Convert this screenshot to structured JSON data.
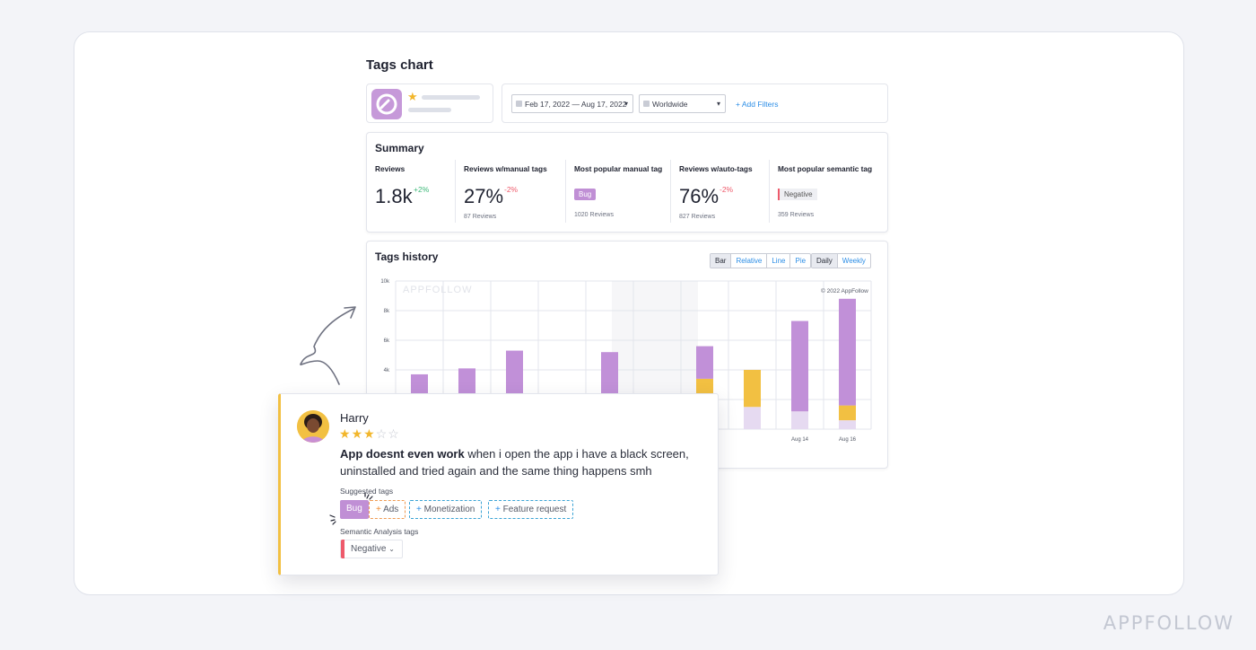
{
  "page": {
    "title": "Tags chart",
    "brand": "APPFOLLOW"
  },
  "filters": {
    "date_range": "Feb 17, 2022 — Aug 17, 2022",
    "region": "Worldwide",
    "add_filters": "+ Add Filters"
  },
  "summary": {
    "title": "Summary",
    "metrics": [
      {
        "label": "Reviews",
        "value": "1.8k",
        "delta": "+2%",
        "sub": ""
      },
      {
        "label": "Reviews w/manual tags",
        "value": "27%",
        "delta": "-2%",
        "sub": "87 Reviews"
      },
      {
        "label": "Most popular manual tag",
        "tag": "Bug",
        "sub": "1020 Reviews"
      },
      {
        "label": "Reviews w/auto-tags",
        "value": "76%",
        "delta": "-2%",
        "sub": "827 Reviews"
      },
      {
        "label": "Most popular semantic tag",
        "tag": "Negative",
        "sub": "359 Reviews"
      }
    ]
  },
  "history": {
    "title": "Tags history",
    "chart_types": [
      "Bar",
      "Relative",
      "Line",
      "Pie"
    ],
    "active_chart_type": "Bar",
    "periods": [
      "Daily",
      "Weekly"
    ],
    "active_period": "Daily",
    "watermark": "APPFOLLOW",
    "copyright": "© 2022 AppFollow"
  },
  "chart_data": {
    "type": "bar",
    "stacked": true,
    "ylim": [
      0,
      10000
    ],
    "y_ticks": [
      "10k",
      "8k",
      "6k",
      "4k"
    ],
    "x_tick_labels": [
      "Aug 14",
      "Aug 16"
    ],
    "colors": {
      "purple": "#c190d8",
      "yellow": "#f2c042",
      "lavender": "#e6daf1"
    },
    "series": [
      {
        "color": "purple",
        "values": [
          3700,
          3600,
          5300,
          2300,
          4600,
          0,
          2200,
          0,
          6100,
          7200
        ]
      },
      {
        "color": "yellow",
        "values": [
          0,
          500,
          0,
          0,
          600,
          1200,
          1900,
          2500,
          0,
          1000
        ]
      },
      {
        "color": "lavender",
        "values": [
          0,
          0,
          0,
          0,
          0,
          0,
          1500,
          1500,
          1200,
          600
        ]
      }
    ]
  },
  "review": {
    "author": "Harry",
    "rating": 3,
    "max_rating": 5,
    "title": "App doesnt even work",
    "body": " when i open the app i have a black screen, uninstalled and tried again and the same thing happens smh",
    "suggested_label": "Suggested tags",
    "tags": [
      "Bug",
      "Ads",
      "Monetization",
      "Feature request"
    ],
    "semantic_label": "Semantic Analysis tags",
    "semantic_tag": "Negative"
  }
}
